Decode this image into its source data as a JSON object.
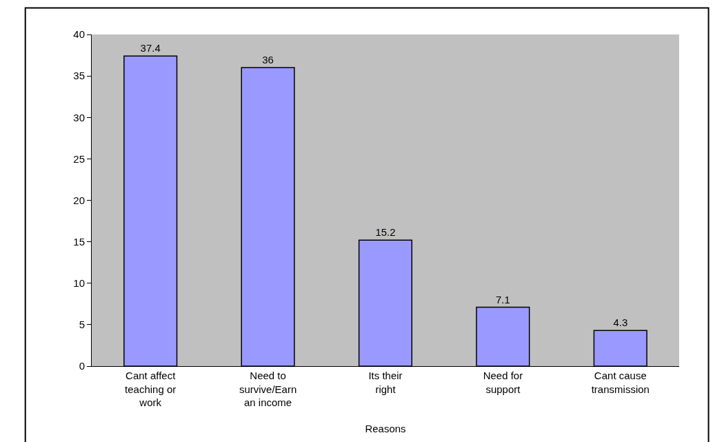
{
  "chart_data": {
    "type": "bar",
    "xlabel": "Reasons",
    "categories": [
      "Cant affect teaching or work",
      "Need to survive/Earn an income",
      "Its their right",
      "Need for support",
      "Cant cause transmission"
    ],
    "values": [
      37.4,
      36,
      15.2,
      7.1,
      4.3
    ],
    "color": "#9999ff",
    "ylim": [
      0,
      40
    ],
    "yticks": [
      0,
      5,
      10,
      15,
      20,
      25,
      30,
      35,
      40
    ],
    "grid": false,
    "legend": false,
    "data_labels": true
  }
}
